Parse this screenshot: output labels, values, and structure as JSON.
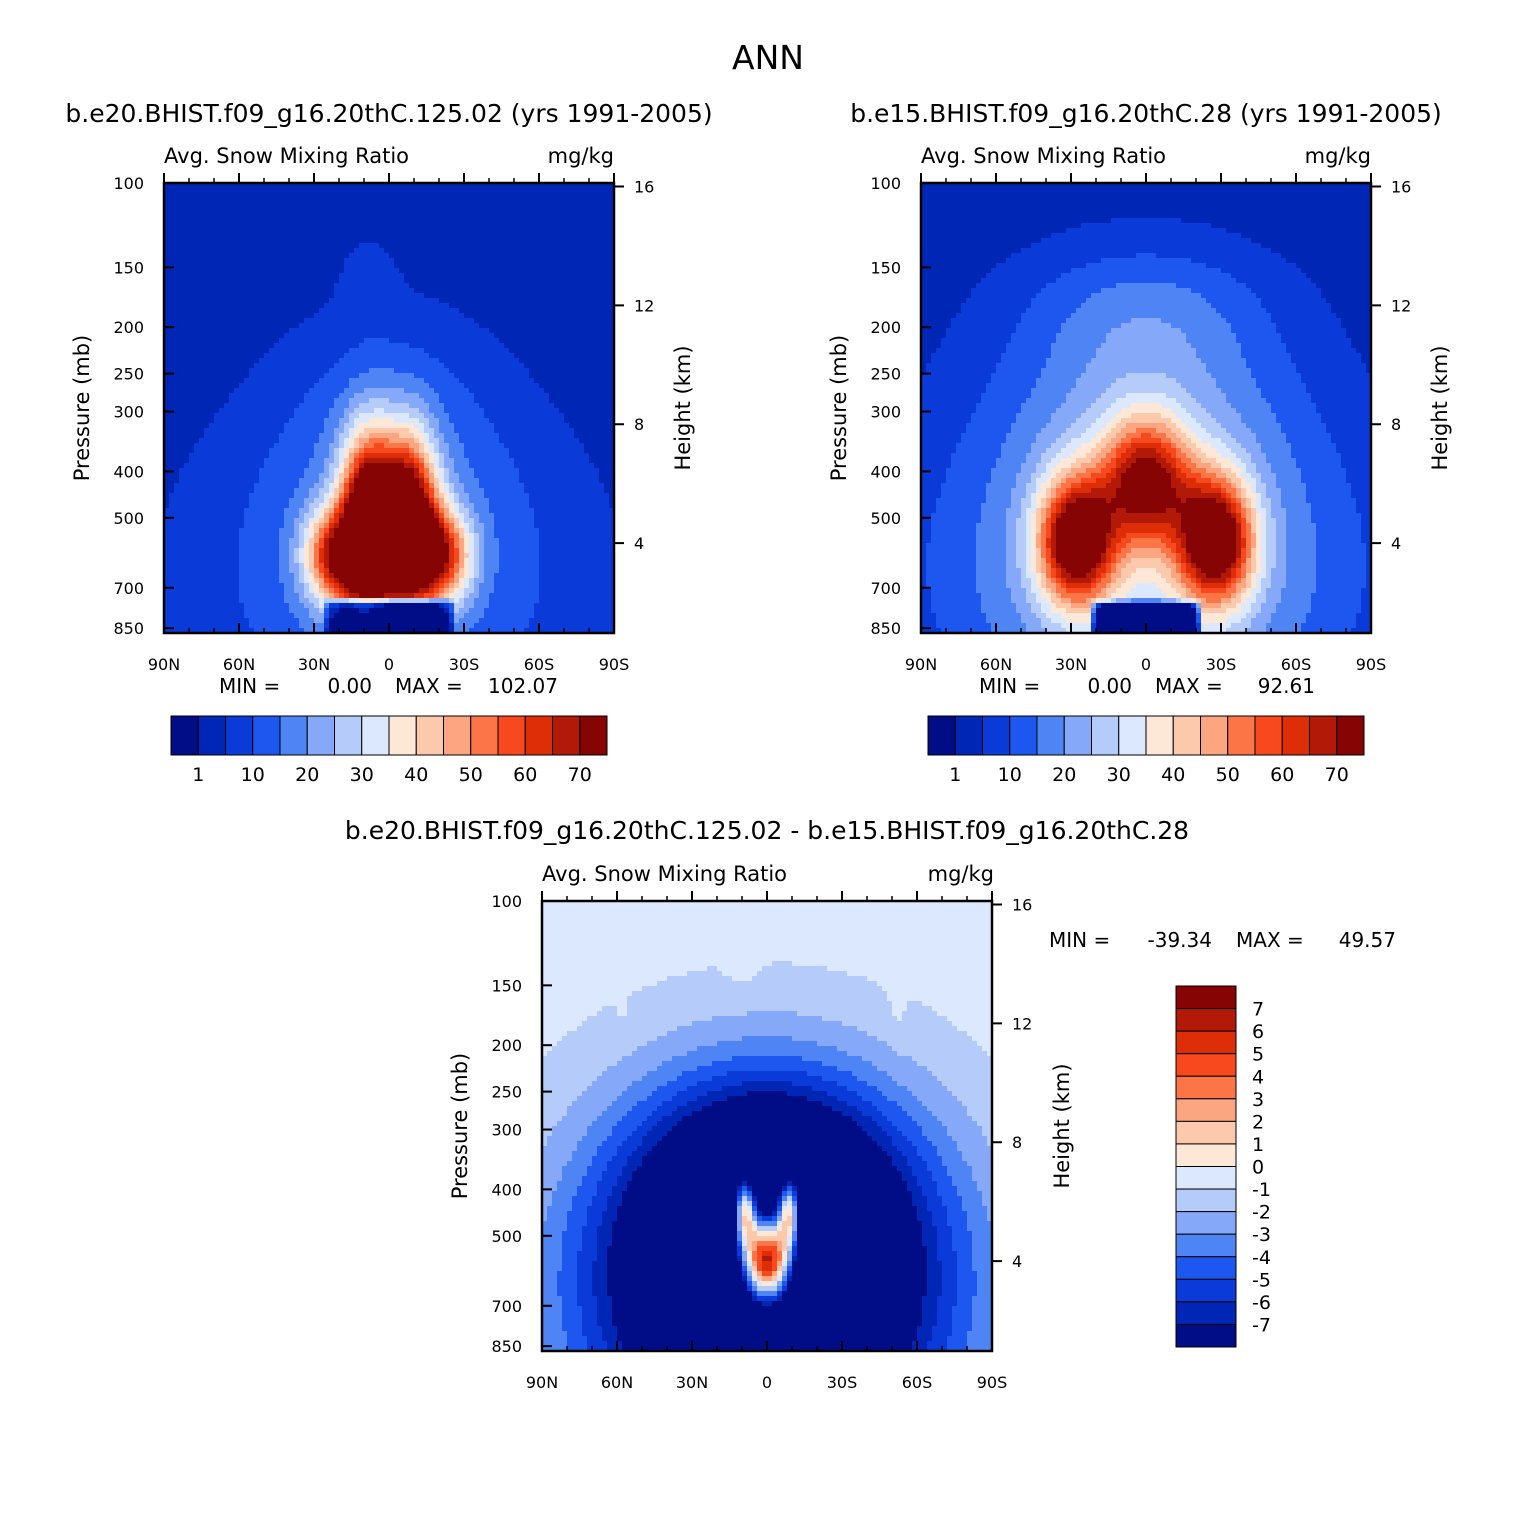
{
  "colors": {
    "palette": [
      "#000d87",
      "#0026b5",
      "#0a3bd8",
      "#1d57f0",
      "#4f84f5",
      "#86a8f8",
      "#b5cbfa",
      "#dbe8fd",
      "#fde8d8",
      "#fcc9ad",
      "#fba681",
      "#fb7546",
      "#f7481e",
      "#de2e08",
      "#b21a07",
      "#860404"
    ],
    "frame": "#000000",
    "background": "#ffffff"
  },
  "figure": {
    "title": "ANN"
  },
  "panels": [
    {
      "id": "p1",
      "case_title": "b.e20.BHIST.f09_g16.20thC.125.02 (yrs 1991-2005)",
      "variable": "Avg. Snow Mixing Ratio",
      "units": "mg/kg",
      "ylabel": "Pressure (mb)",
      "ylabel_right": "Height (km)",
      "min_label": "MIN =",
      "min_value": "0.00",
      "max_label": "MAX =",
      "max_value": "102.07",
      "colorbar_labels": [
        "1",
        "10",
        "20",
        "30",
        "40",
        "50",
        "60",
        "70"
      ]
    },
    {
      "id": "p2",
      "case_title": "b.e15.BHIST.f09_g16.20thC.28 (yrs 1991-2005)",
      "variable": "Avg. Snow Mixing Ratio",
      "units": "mg/kg",
      "ylabel": "Pressure (mb)",
      "ylabel_right": "Height (km)",
      "min_label": "MIN =",
      "min_value": "0.00",
      "max_label": "MAX =",
      "max_value": "92.61",
      "colorbar_labels": [
        "1",
        "10",
        "20",
        "30",
        "40",
        "50",
        "60",
        "70"
      ]
    },
    {
      "id": "p3",
      "case_title": "b.e20.BHIST.f09_g16.20thC.125.02 - b.e15.BHIST.f09_g16.20thC.28",
      "variable": "Avg. Snow Mixing Ratio",
      "units": "mg/kg",
      "ylabel": "Pressure (mb)",
      "ylabel_right": "Height (km)",
      "min_label": "MIN =",
      "min_value": "-39.34",
      "max_label": "MAX =",
      "max_value": "49.57",
      "colorbar_labels": [
        "7",
        "6",
        "5",
        "4",
        "3",
        "2",
        "1",
        "0",
        "-1",
        "-2",
        "-3",
        "-4",
        "-5",
        "-6",
        "-7"
      ]
    }
  ],
  "chart_data": [
    {
      "type": "heatmap",
      "panel": "p1",
      "title": "b.e20.BHIST.f09_g16.20thC.125.02 (yrs 1991-2005)",
      "xlabel": "",
      "ylabel": "Pressure (mb)",
      "xlim": [
        90,
        -90
      ],
      "ylim_pressure_mb": [
        870,
        100
      ],
      "x_ticks": [
        {
          "value": 90,
          "label": "90N"
        },
        {
          "value": 60,
          "label": "60N"
        },
        {
          "value": 30,
          "label": "30N"
        },
        {
          "value": 0,
          "label": "0"
        },
        {
          "value": -30,
          "label": "30S"
        },
        {
          "value": -60,
          "label": "60S"
        },
        {
          "value": -90,
          "label": "90S"
        }
      ],
      "y_ticks": [
        100,
        150,
        200,
        250,
        300,
        400,
        500,
        700,
        850
      ],
      "height_ticks_km": [
        4,
        8,
        12,
        16
      ],
      "contour_levels": [
        1,
        5,
        10,
        15,
        20,
        25,
        30,
        35,
        40,
        45,
        50,
        55,
        60,
        65,
        70
      ],
      "range": {
        "min": 0.0,
        "max": 102.07
      },
      "features": [
        {
          "kind": "background",
          "value": 2
        },
        {
          "kind": "peak",
          "lat": 0,
          "p": 650,
          "value": 16,
          "dlat": 72,
          "dlogp": 0.8
        },
        {
          "kind": "peak",
          "lat": 0,
          "p": 320,
          "value": 8,
          "dlat": 40,
          "dlogp": 0.55
        },
        {
          "kind": "peak",
          "lat": 8,
          "p": 160,
          "value": 5,
          "dlat": 10,
          "dlogp": 0.2
        },
        {
          "kind": "peak",
          "lat": 8,
          "p": 530,
          "value": 82,
          "dlat": 11,
          "dlogp": 0.42
        },
        {
          "kind": "peak",
          "lat": -8,
          "p": 520,
          "value": 72,
          "dlat": 11,
          "dlogp": 0.4
        },
        {
          "kind": "peak",
          "lat": 22,
          "p": 600,
          "value": 48,
          "dlat": 12,
          "dlogp": 0.22
        },
        {
          "kind": "peak",
          "lat": -21,
          "p": 600,
          "value": 46,
          "dlat": 12,
          "dlogp": 0.22
        },
        {
          "kind": "surface_cut",
          "lat": 0,
          "halfwidth": 26,
          "p_top": 730,
          "value": -60
        }
      ]
    },
    {
      "type": "heatmap",
      "panel": "p2",
      "title": "b.e15.BHIST.f09_g16.20thC.28 (yrs 1991-2005)",
      "xlabel": "",
      "ylabel": "Pressure (mb)",
      "xlim": [
        90,
        -90
      ],
      "ylim_pressure_mb": [
        870,
        100
      ],
      "x_ticks": [
        {
          "value": 90,
          "label": "90N"
        },
        {
          "value": 60,
          "label": "60N"
        },
        {
          "value": 30,
          "label": "30N"
        },
        {
          "value": 0,
          "label": "0"
        },
        {
          "value": -30,
          "label": "30S"
        },
        {
          "value": -60,
          "label": "60S"
        },
        {
          "value": -90,
          "label": "90S"
        }
      ],
      "y_ticks": [
        100,
        150,
        200,
        250,
        300,
        400,
        500,
        700,
        850
      ],
      "height_ticks_km": [
        4,
        8,
        12,
        16
      ],
      "contour_levels": [
        1,
        5,
        10,
        15,
        20,
        25,
        30,
        35,
        40,
        45,
        50,
        55,
        60,
        65,
        70
      ],
      "range": {
        "min": 0.0,
        "max": 92.61
      },
      "features": [
        {
          "kind": "background",
          "value": 2
        },
        {
          "kind": "peak",
          "lat": 0,
          "p": 650,
          "value": 26,
          "dlat": 80,
          "dlogp": 0.85
        },
        {
          "kind": "peak",
          "lat": 0,
          "p": 280,
          "value": 12,
          "dlat": 55,
          "dlogp": 0.6
        },
        {
          "kind": "peak",
          "lat": 0,
          "p": 180,
          "value": 7,
          "dlat": 48,
          "dlogp": 0.3
        },
        {
          "kind": "peak",
          "lat": 28,
          "p": 560,
          "value": 62,
          "dlat": 15,
          "dlogp": 0.3
        },
        {
          "kind": "peak",
          "lat": -28,
          "p": 560,
          "value": 62,
          "dlat": 15,
          "dlogp": 0.3
        },
        {
          "kind": "peak",
          "lat": 0,
          "p": 420,
          "value": 48,
          "dlat": 18,
          "dlogp": 0.3
        },
        {
          "kind": "surface_cut",
          "lat": 0,
          "halfwidth": 22,
          "p_top": 740,
          "value": -80
        }
      ]
    },
    {
      "type": "heatmap",
      "panel": "p3",
      "title": "b.e20.BHIST.f09_g16.20thC.125.02 - b.e15.BHIST.f09_g16.20thC.28",
      "xlabel": "",
      "ylabel": "Pressure (mb)",
      "xlim": [
        90,
        -90
      ],
      "ylim_pressure_mb": [
        870,
        100
      ],
      "x_ticks": [
        {
          "value": 90,
          "label": "90N"
        },
        {
          "value": 60,
          "label": "60N"
        },
        {
          "value": 30,
          "label": "30N"
        },
        {
          "value": 0,
          "label": "0"
        },
        {
          "value": -30,
          "label": "30S"
        },
        {
          "value": -60,
          "label": "60S"
        },
        {
          "value": -90,
          "label": "90S"
        }
      ],
      "y_ticks": [
        100,
        150,
        200,
        250,
        300,
        400,
        500,
        700,
        850
      ],
      "height_ticks_km": [
        4,
        8,
        12,
        16
      ],
      "contour_levels": [
        -7,
        -6,
        -5,
        -4,
        -3,
        -2,
        -1,
        0,
        1,
        2,
        3,
        4,
        5,
        6,
        7
      ],
      "range": {
        "min": -39.34,
        "max": 49.57
      },
      "features": [
        {
          "kind": "background",
          "value": -0.5
        },
        {
          "kind": "peak",
          "lat": 0,
          "p": 650,
          "value": -14,
          "dlat": 70,
          "dlogp": 0.85
        },
        {
          "kind": "peak",
          "lat": 0,
          "p": 400,
          "value": -6,
          "dlat": 45,
          "dlogp": 0.5
        },
        {
          "kind": "peak",
          "lat": 0,
          "p": 560,
          "value": 24,
          "dlat": 11,
          "dlogp": 0.22
        },
        {
          "kind": "peak",
          "lat": 9,
          "p": 440,
          "value": 14,
          "dlat": 5,
          "dlogp": 0.18
        },
        {
          "kind": "peak",
          "lat": -9,
          "p": 440,
          "value": 14,
          "dlat": 5,
          "dlogp": 0.18
        },
        {
          "kind": "peak",
          "lat": 58,
          "p": 130,
          "value": 0.6,
          "dlat": 2,
          "dlogp": 0.3
        },
        {
          "kind": "peak",
          "lat": -52,
          "p": 135,
          "value": 0.7,
          "dlat": 3,
          "dlogp": 0.35
        },
        {
          "kind": "peak",
          "lat": 10,
          "p": 130,
          "value": 0.6,
          "dlat": 6,
          "dlogp": 0.15
        },
        {
          "kind": "peak",
          "lat": 0,
          "p": 850,
          "value": 0.9,
          "dlat": 12,
          "dlogp": 0.06
        }
      ]
    }
  ]
}
